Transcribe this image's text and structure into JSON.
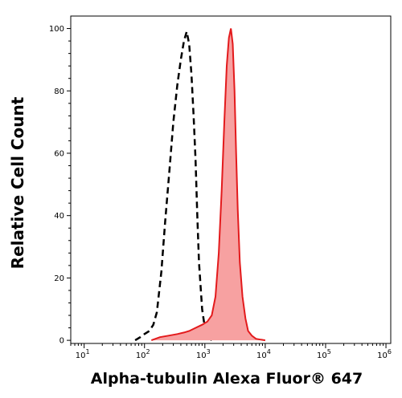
{
  "chart_data": {
    "type": "area",
    "title": "",
    "xlabel": "Alpha-tubulin Alexa Fluor® 647",
    "ylabel": "Relative Cell Count",
    "x_scale": "log",
    "xlim": [
      6,
      1200000
    ],
    "ylim": [
      -1,
      104
    ],
    "x_tick_labels": [
      {
        "value": 10,
        "base": "10",
        "exp": "1"
      },
      {
        "value": 100,
        "base": "10",
        "exp": "2"
      },
      {
        "value": 1000,
        "base": "10",
        "exp": "3"
      },
      {
        "value": 10000,
        "base": "10",
        "exp": "4"
      },
      {
        "value": 100000,
        "base": "10",
        "exp": "5"
      },
      {
        "value": 1000000,
        "base": "10",
        "exp": "6"
      }
    ],
    "y_ticks": [
      0,
      20,
      40,
      60,
      80,
      100
    ],
    "y_tick_labels": [
      "0",
      "20",
      "40",
      "60",
      "80",
      "100"
    ],
    "grid": false,
    "legend": "none",
    "series": [
      {
        "style": "dashed-line",
        "color": "#000000",
        "x": [
          70,
          85,
          100,
          120,
          140,
          160,
          190,
          220,
          260,
          300,
          350,
          400,
          450,
          500,
          550,
          600,
          650,
          700,
          750,
          800,
          900,
          1000,
          1150,
          1300
        ],
        "y": [
          0,
          1,
          2,
          3,
          5,
          9,
          22,
          38,
          55,
          70,
          82,
          90,
          96,
          99,
          95,
          85,
          72,
          58,
          40,
          25,
          10,
          4,
          1,
          0
        ]
      },
      {
        "style": "filled-area",
        "color": "#e31a1c",
        "fill": "#f7a1a1",
        "x": [
          130,
          180,
          250,
          350,
          450,
          550,
          700,
          900,
          1100,
          1300,
          1500,
          1700,
          1900,
          2100,
          2300,
          2500,
          2700,
          2900,
          3100,
          3300,
          3500,
          3800,
          4200,
          4700,
          5200,
          6000,
          7000,
          8500,
          10000
        ],
        "y": [
          0,
          1,
          1.5,
          2,
          2.5,
          3,
          4,
          5,
          6,
          8,
          14,
          28,
          48,
          70,
          88,
          97,
          100,
          95,
          80,
          60,
          42,
          25,
          14,
          7,
          3,
          1.5,
          0.5,
          0.2,
          0
        ]
      }
    ]
  }
}
